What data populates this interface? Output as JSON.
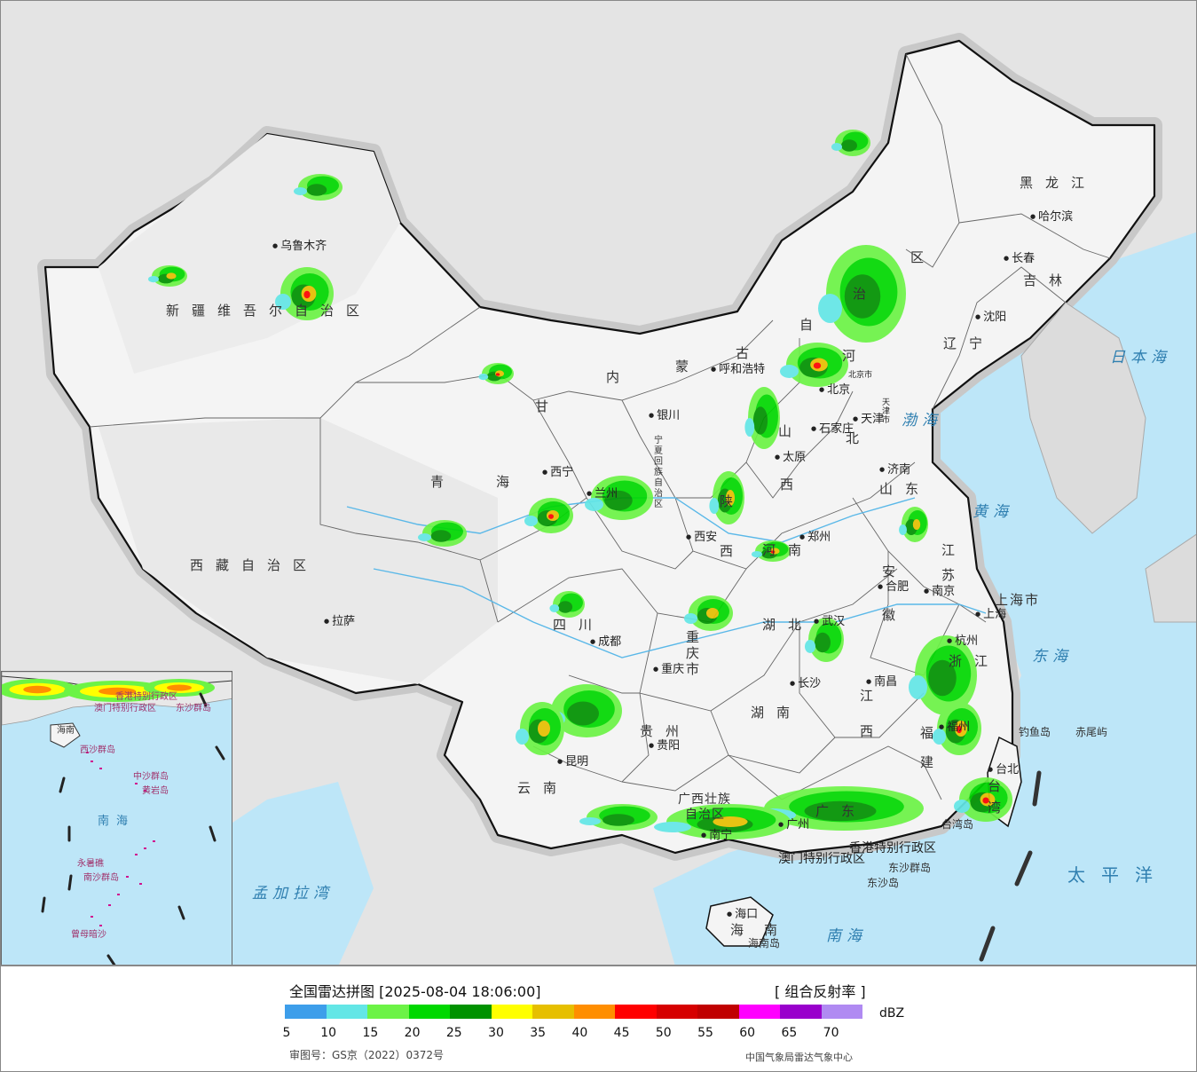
{
  "map": {
    "provinces": [
      {
        "id": "xinjiang",
        "text": "新疆维吾尔自治区"
      },
      {
        "id": "xizang",
        "text": "西藏自治区"
      },
      {
        "id": "qinghai-a",
        "text": "青"
      },
      {
        "id": "qinghai-b",
        "text": "海"
      },
      {
        "id": "gansu",
        "text": "甘"
      },
      {
        "id": "neimeng-a",
        "text": "内"
      },
      {
        "id": "neimeng-b",
        "text": "蒙"
      },
      {
        "id": "neimeng-c",
        "text": "古"
      },
      {
        "id": "neimeng-d",
        "text": "自"
      },
      {
        "id": "neimeng-e",
        "text": "治"
      },
      {
        "id": "neimeng-f",
        "text": "区"
      },
      {
        "id": "heilongjiang",
        "text": "黑龙江"
      },
      {
        "id": "jilin",
        "text": "吉林"
      },
      {
        "id": "liaoning",
        "text": "辽宁"
      },
      {
        "id": "hebei-a",
        "text": "河"
      },
      {
        "id": "hebei-b",
        "text": "北"
      },
      {
        "id": "shanxi-a",
        "text": "山"
      },
      {
        "id": "shanxi-b",
        "text": "西"
      },
      {
        "id": "shandong",
        "text": "山东"
      },
      {
        "id": "shaanxi-a",
        "text": "陕"
      },
      {
        "id": "shaanxi-b",
        "text": "西"
      },
      {
        "id": "ningxia",
        "text": "宁夏回族自治区"
      },
      {
        "id": "henan",
        "text": "河南"
      },
      {
        "id": "jiangsu-a",
        "text": "江"
      },
      {
        "id": "jiangsu-b",
        "text": "苏"
      },
      {
        "id": "anhui-a",
        "text": "安"
      },
      {
        "id": "anhui-b",
        "text": "徽"
      },
      {
        "id": "shanghai",
        "text": "上海市"
      },
      {
        "id": "sichuan",
        "text": "四川"
      },
      {
        "id": "chongqing",
        "text": "重庆市"
      },
      {
        "id": "hubei",
        "text": "湖北"
      },
      {
        "id": "zhejiang",
        "text": "浙江"
      },
      {
        "id": "hunan",
        "text": "湖南"
      },
      {
        "id": "jiangxi-a",
        "text": "江"
      },
      {
        "id": "jiangxi-b",
        "text": "西"
      },
      {
        "id": "fujian-a",
        "text": "福"
      },
      {
        "id": "fujian-b",
        "text": "建"
      },
      {
        "id": "guizhou",
        "text": "贵州"
      },
      {
        "id": "yunnan",
        "text": "云南"
      },
      {
        "id": "guangxi-a",
        "text": "广西壮族"
      },
      {
        "id": "guangxi-b",
        "text": "自治区"
      },
      {
        "id": "guangdong",
        "text": "广东"
      },
      {
        "id": "taiwan-a",
        "text": "台"
      },
      {
        "id": "taiwan-b",
        "text": "湾"
      },
      {
        "id": "hainan-a",
        "text": "海"
      },
      {
        "id": "hainan-b",
        "text": "南"
      },
      {
        "id": "hk",
        "text": "香港特别行政区"
      },
      {
        "id": "macau",
        "text": "澳门特别行政区"
      },
      {
        "id": "beijing-m",
        "text": "北京市"
      },
      {
        "id": "tianjin-m",
        "text": "天津市"
      }
    ],
    "cities": [
      {
        "id": "urumqi",
        "text": "乌鲁木齐"
      },
      {
        "id": "lhasa",
        "text": "拉萨"
      },
      {
        "id": "xining",
        "text": "西宁"
      },
      {
        "id": "lanzhou",
        "text": "兰州"
      },
      {
        "id": "yinchuan",
        "text": "银川"
      },
      {
        "id": "hohhot",
        "text": "呼和浩特"
      },
      {
        "id": "beijing",
        "text": "北京"
      },
      {
        "id": "tianjin",
        "text": "天津"
      },
      {
        "id": "shijiazhuang",
        "text": "石家庄"
      },
      {
        "id": "taiyuan",
        "text": "太原"
      },
      {
        "id": "jinan",
        "text": "济南"
      },
      {
        "id": "xian",
        "text": "西安"
      },
      {
        "id": "zhengzhou",
        "text": "郑州"
      },
      {
        "id": "hefei",
        "text": "合肥"
      },
      {
        "id": "nanjing",
        "text": "南京"
      },
      {
        "id": "shanghai-c",
        "text": "上海"
      },
      {
        "id": "hangzhou",
        "text": "杭州"
      },
      {
        "id": "wuhan",
        "text": "武汉"
      },
      {
        "id": "chengdu",
        "text": "成都"
      },
      {
        "id": "chongqing-c",
        "text": "重庆"
      },
      {
        "id": "changsha",
        "text": "长沙"
      },
      {
        "id": "nanchang",
        "text": "南昌"
      },
      {
        "id": "fuzhou",
        "text": "福州"
      },
      {
        "id": "guiyang",
        "text": "贵阳"
      },
      {
        "id": "kunming",
        "text": "昆明"
      },
      {
        "id": "nanning",
        "text": "南宁"
      },
      {
        "id": "guangzhou",
        "text": "广州"
      },
      {
        "id": "haikou",
        "text": "海口"
      },
      {
        "id": "taipei",
        "text": "台北"
      },
      {
        "id": "shenyang",
        "text": "沈阳"
      },
      {
        "id": "changchun",
        "text": "长春"
      },
      {
        "id": "harbin",
        "text": "哈尔滨"
      }
    ],
    "seas": [
      {
        "id": "bohai",
        "text": "渤海"
      },
      {
        "id": "huanghai",
        "text": "黄海"
      },
      {
        "id": "donghai",
        "text": "东海"
      },
      {
        "id": "nanhai",
        "text": "南海"
      },
      {
        "id": "riben",
        "text": "日本海"
      },
      {
        "id": "mengjiala",
        "text": "孟加拉湾"
      },
      {
        "id": "taipingyang",
        "text": "太平洋"
      }
    ],
    "islands": [
      {
        "id": "diaoyu",
        "text": "钓鱼岛"
      },
      {
        "id": "chiwei",
        "text": "赤尾屿"
      },
      {
        "id": "dongsha-qd",
        "text": "东沙群岛"
      },
      {
        "id": "dongsha",
        "text": "东沙岛"
      },
      {
        "id": "hainan-dao",
        "text": "海南岛"
      },
      {
        "id": "taiwan-dao",
        "text": "台湾岛"
      }
    ],
    "inset": {
      "labels": [
        "香港特别行政区",
        "澳门特别行政区",
        "东沙群岛",
        "海南",
        "西沙群岛",
        "中沙群岛",
        "黄岩岛",
        "南海",
        "永暑礁",
        "南沙群岛",
        "曾母暗沙"
      ]
    }
  },
  "legend": {
    "title": "全国雷达拼图 [2025-08-04 18:06:00]",
    "product": "[ 组合反射率 ]",
    "unit": "dBZ",
    "ticks": [
      "5",
      "10",
      "15",
      "20",
      "25",
      "30",
      "35",
      "40",
      "45",
      "50",
      "55",
      "60",
      "65",
      "70"
    ],
    "colors": [
      "#3d9eea",
      "#63e6e6",
      "#6cf346",
      "#00d800",
      "#009200",
      "#ffff00",
      "#e6bf00",
      "#ff8e00",
      "#ff0000",
      "#d60000",
      "#c00000",
      "#ff00ff",
      "#9900cc",
      "#b08af2"
    ],
    "review_no": "审图号：GS京（2022）0372号",
    "source": "中国气象局雷达气象中心"
  }
}
